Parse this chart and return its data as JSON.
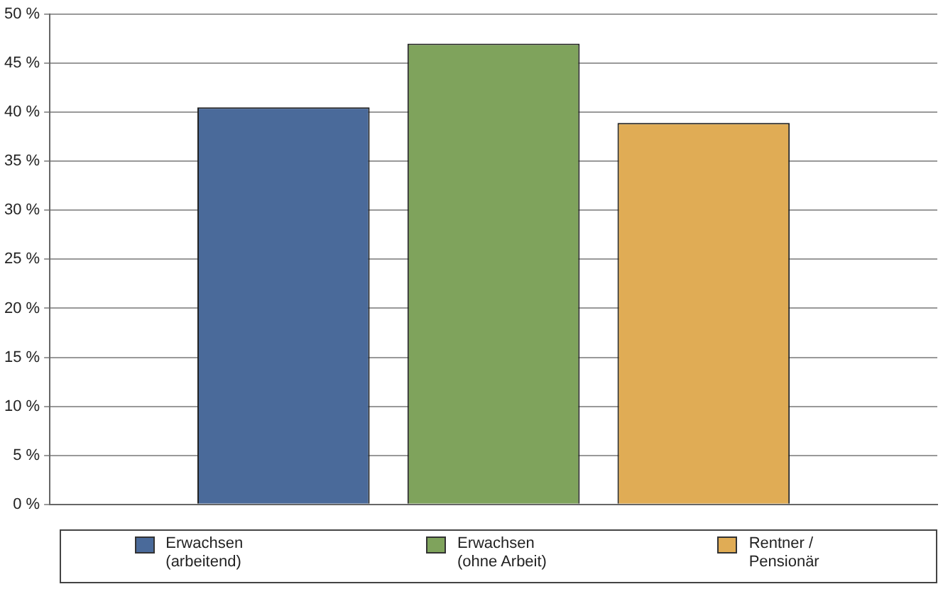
{
  "chart_data": {
    "type": "bar",
    "categories": [
      null
    ],
    "series": [
      {
        "name": "Erwachsen (arbeitend)",
        "color": "#4a6a9a",
        "values": [
          40.5
        ]
      },
      {
        "name": "Erwachsen (ohne Arbeit)",
        "color": "#7fa35c",
        "values": [
          47
        ]
      },
      {
        "name": "Rentner / Pensionär",
        "color": "#e0ac55",
        "values": [
          38.9
        ]
      }
    ],
    "ylim": [
      0,
      50
    ],
    "yticks": [
      {
        "value": 0,
        "label": "0 %"
      },
      {
        "value": 5,
        "label": "5 %"
      },
      {
        "value": 10,
        "label": "10 %"
      },
      {
        "value": 15,
        "label": "15 %"
      },
      {
        "value": 20,
        "label": "20 %"
      },
      {
        "value": 25,
        "label": "25 %"
      },
      {
        "value": 30,
        "label": "30 %"
      },
      {
        "value": 35,
        "label": "35 %"
      },
      {
        "value": 40,
        "label": "40 %"
      },
      {
        "value": 45,
        "label": "45 %"
      },
      {
        "value": 50,
        "label": "50 %"
      }
    ],
    "grid": "y",
    "legend": "bottom"
  }
}
